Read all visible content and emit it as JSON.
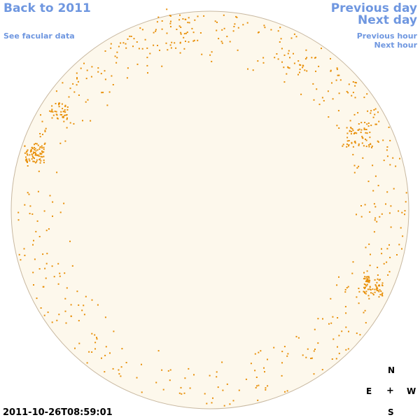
{
  "nav": {
    "back": "Back to 2011",
    "facular": "See facular data",
    "previous_day": "Previous day",
    "next_day": "Next day",
    "previous_hour": "Previous hour",
    "next_hour": "Next hour"
  },
  "timestamp": "2011-10-26T08:59:01",
  "compass": {
    "north": "N",
    "east": "E",
    "center": "+",
    "west": "W",
    "south": "S"
  },
  "colors": {
    "link": "#6f97e0",
    "disk_fill": "#fdf8ec",
    "disk_edge": "#c8b8a0",
    "spot": "#e8900a"
  }
}
